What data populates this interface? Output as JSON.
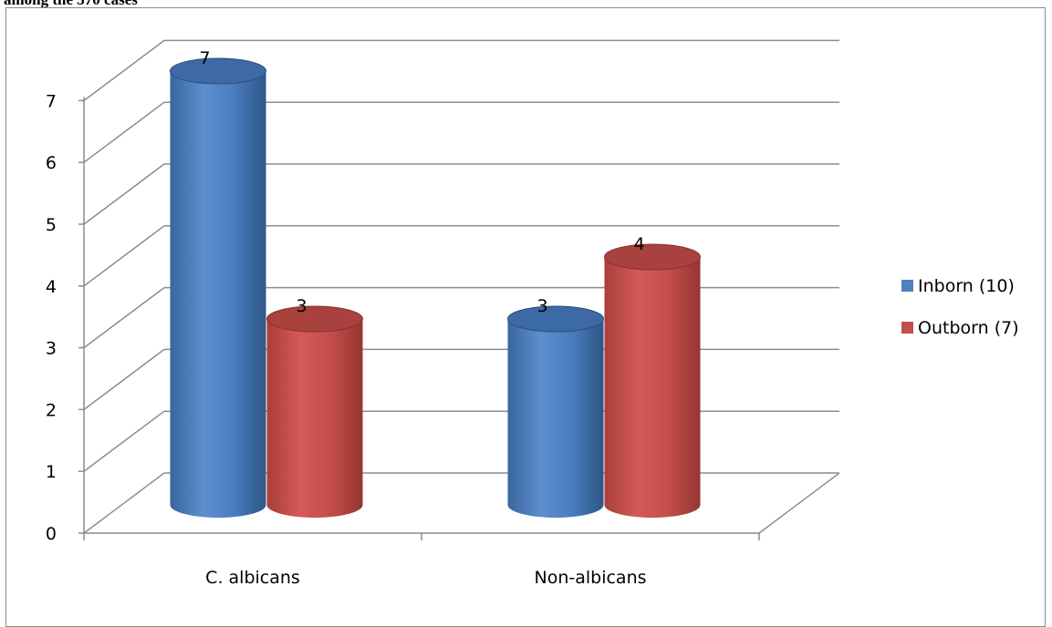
{
  "caption": "among  the  370 cases",
  "chart_data": {
    "type": "bar",
    "style": "3d-cylinder",
    "title": "",
    "xlabel": "",
    "ylabel": "",
    "categories": [
      "C. albicans",
      "Non-albicans"
    ],
    "series": [
      {
        "name": "Inborn (10)",
        "values": [
          7,
          3
        ],
        "color": "#4f81bd"
      },
      {
        "name": "Outborn (7)",
        "values": [
          3,
          4
        ],
        "color": "#c0504d"
      }
    ],
    "ylim": [
      0,
      7
    ],
    "yticks": [
      0,
      1,
      2,
      3,
      4,
      5,
      6,
      7
    ],
    "grid": true,
    "legend": "right",
    "data_labels": true
  }
}
